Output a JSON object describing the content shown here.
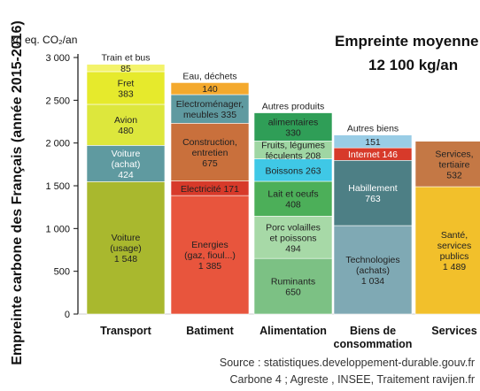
{
  "chart_data": {
    "type": "bar",
    "stacked": true,
    "title": "Empreinte moyenne",
    "subtitle": "12 100 kg/an",
    "ylabel": "Empreinte carbone des Français (année 2015-2016)",
    "unit": "kg eq. CO₂/an",
    "ylim": [
      0,
      3000
    ],
    "yticks": [
      0,
      500,
      1000,
      1500,
      2000,
      2500,
      3000
    ],
    "ytick_labels": [
      "0",
      "500",
      "1 000",
      "1 500",
      "2 000",
      "2 500",
      "3 000"
    ],
    "grid": false,
    "categories": [
      "Transport",
      "Batiment",
      "Alimentation",
      "Biens de consommation",
      "Services"
    ],
    "category_lines": [
      [
        "Transport"
      ],
      [
        "Batiment"
      ],
      [
        "Alimentation"
      ],
      [
        "Biens de",
        "consommation"
      ],
      [
        "Services"
      ]
    ],
    "stacks": [
      {
        "category": "Transport",
        "segments": [
          {
            "name": "Voiture (usage)",
            "label_lines": [
              "Voiture",
              "(usage)",
              "1 548"
            ],
            "value": 1548,
            "color": "#a9b82e"
          },
          {
            "name": "Voiture (achat)",
            "label_lines": [
              "Voiture",
              "(achat)",
              "424"
            ],
            "value": 424,
            "color": "#5f9aa0",
            "light": true
          },
          {
            "name": "Avion",
            "label_lines": [
              "Avion",
              "480"
            ],
            "value": 480,
            "color": "#dde73c"
          },
          {
            "name": "Fret",
            "label_lines": [
              "Fret",
              "383"
            ],
            "value": 383,
            "color": "#e6ea2c"
          },
          {
            "name": "Train et bus",
            "label_lines": [
              "85"
            ],
            "value": 85,
            "color": "#f3f36a",
            "outside_label": "Train et bus"
          }
        ]
      },
      {
        "category": "Batiment",
        "segments": [
          {
            "name": "Energies (gaz, fioul...)",
            "label_lines": [
              "Energies",
              "(gaz, fioul...)",
              "1 385"
            ],
            "value": 1385,
            "color": "#e8553d"
          },
          {
            "name": "Electricité",
            "label_lines": [
              "Electricité 171"
            ],
            "value": 171,
            "color": "#d73a2a"
          },
          {
            "name": "Construction, entretien",
            "label_lines": [
              "Construction,",
              "entretien",
              "675"
            ],
            "value": 675,
            "color": "#c9703c"
          },
          {
            "name": "Electroménager, meubles",
            "label_lines": [
              "Electroménager,",
              "meubles 335"
            ],
            "value": 335,
            "color": "#5f9aa0"
          },
          {
            "name": "Eau, déchets",
            "label_lines": [
              "140"
            ],
            "value": 140,
            "color": "#f4a92d",
            "outside_label": "Eau, déchets"
          }
        ]
      },
      {
        "category": "Alimentation",
        "segments": [
          {
            "name": "Ruminants",
            "label_lines": [
              "Ruminants",
              "650"
            ],
            "value": 650,
            "color": "#7cc184"
          },
          {
            "name": "Porc volailles et poissons",
            "label_lines": [
              "Porc volailles",
              "et poissons",
              "494"
            ],
            "value": 494,
            "color": "#a7d9a7"
          },
          {
            "name": "Lait et oeufs",
            "label_lines": [
              "Lait et oeufs",
              "408"
            ],
            "value": 408,
            "color": "#4caf59"
          },
          {
            "name": "Boissons",
            "label_lines": [
              "Boissons 263"
            ],
            "value": 263,
            "color": "#3fc8e6"
          },
          {
            "name": "Fruits, légumes féculents",
            "label_lines": [
              "Fruits, légumes",
              "féculents 208"
            ],
            "value": 208,
            "color": "#9fd6a3"
          },
          {
            "name": "Autres produits alimentaires",
            "label_lines": [
              "330"
            ],
            "value": 330,
            "color": "#2f9e57",
            "outside_label": "Autres produits",
            "inner_title": "alimentaires"
          }
        ]
      },
      {
        "category": "Biens de consommation",
        "segments": [
          {
            "name": "Technologies (achats)",
            "label_lines": [
              "Technologies",
              "(achats)",
              "1 034"
            ],
            "value": 1034,
            "color": "#7fa9b4"
          },
          {
            "name": "Habillement",
            "label_lines": [
              "Habillement",
              "763"
            ],
            "value": 763,
            "color": "#4d7f85",
            "light": true
          },
          {
            "name": "Internet",
            "label_lines": [
              "Internet 146"
            ],
            "value": 146,
            "color": "#d73a2a",
            "light": true
          },
          {
            "name": "Autres biens",
            "label_lines": [
              "151"
            ],
            "value": 151,
            "color": "#99cde6",
            "outside_label": "Autres biens"
          }
        ]
      },
      {
        "category": "Services",
        "segments": [
          {
            "name": "Santé, services publics",
            "label_lines": [
              "Santé,",
              "services",
              "publics",
              "1 489"
            ],
            "value": 1489,
            "color": "#f2c02b"
          },
          {
            "name": "Services, tertiaire",
            "label_lines": [
              "Services,",
              "tertiaire",
              "532"
            ],
            "value": 532,
            "color": "#c47845"
          }
        ]
      }
    ],
    "source_lines": [
      "Source : statistiques.developpement-durable.gouv.fr",
      "Carbone 4 ; Agreste , INSEE, Traitement ravijen.fr"
    ]
  }
}
